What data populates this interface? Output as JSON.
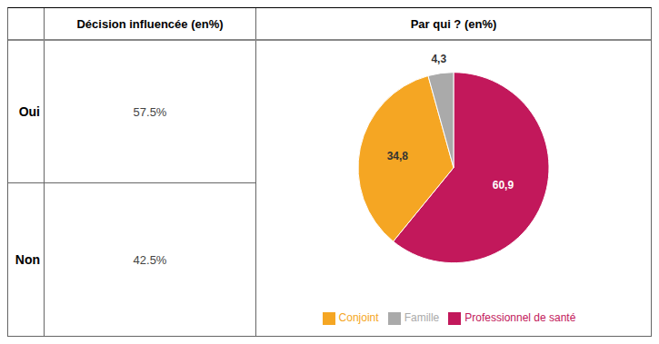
{
  "chart_data": [
    {
      "type": "table",
      "title": "Décision influencée (en%)",
      "categories": [
        "Oui",
        "Non"
      ],
      "values": [
        57.5,
        42.5
      ],
      "value_labels": [
        "57.5%",
        "42.5%"
      ]
    },
    {
      "type": "pie",
      "title": "Par qui ? (en%)",
      "categories": [
        "Professionnel de santé",
        "Conjoint",
        "Famille"
      ],
      "values": [
        60.9,
        34.8,
        4.3
      ],
      "value_labels": [
        "60,9",
        "34,8",
        "4,3"
      ],
      "colors": [
        "#C2185B",
        "#F5A623",
        "#AAAAAA"
      ],
      "data_labels": true,
      "legend": "bottom"
    }
  ]
}
